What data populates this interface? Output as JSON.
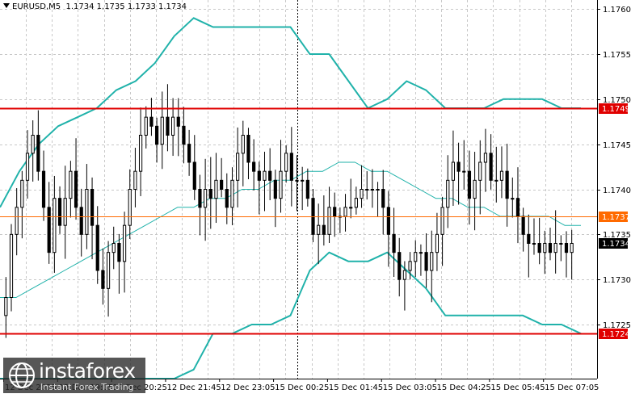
{
  "window": {
    "symbol_label": "EURUSD,M5",
    "ohlc_label": "1.1734 1.1735 1.1733 1.1734"
  },
  "colors": {
    "background": "#ffffff",
    "grid": "#c8c8c8",
    "candles": "#000000",
    "bands": "#20b2aa",
    "level_red": "#e00000",
    "level_orange": "#ff6a00",
    "current_price_bg": "#000000"
  },
  "watermark": {
    "brand": "instaforex",
    "tagline": "Instant Forex Trading",
    "icon": "instaforex-globe-icon"
  },
  "chart_data": {
    "type": "candlestick",
    "symbol": "EURUSD",
    "timeframe": "M5",
    "ylim": [
      1.1719,
      1.1761
    ],
    "y_ticks": [
      "1.1760",
      "1.1755",
      "1.1750",
      "1.1745",
      "1.1740",
      "1.1735",
      "1.1730",
      "1.1725"
    ],
    "x_ticks": [
      "12 Dec 2025",
      "12 Dec 19:05",
      "12 Dec 20:25",
      "12 Dec 21:45",
      "12 Dec 23:05",
      "15 Dec 00:25",
      "15 Dec 01:45",
      "15 Dec 03:05",
      "15 Dec 04:25",
      "15 Dec 05:45",
      "15 Dec 07:05"
    ],
    "levels": [
      {
        "value": 1.1749,
        "label": "1.1749",
        "color": "#e00000"
      },
      {
        "value": 1.1737,
        "label": "1.1737",
        "color": "#ff6a00"
      },
      {
        "value": 1.1724,
        "label": "1.1724",
        "color": "#e00000"
      }
    ],
    "current_price": {
      "value": 1.1734,
      "label": "1.1734"
    },
    "closes": [
      1.1728,
      1.1735,
      1.1738,
      1.1741,
      1.1744,
      1.1746,
      1.1742,
      1.1738,
      1.1733,
      1.1739,
      1.1736,
      1.1739,
      1.1742,
      1.1738,
      1.1735,
      1.174,
      1.1736,
      1.1731,
      1.1729,
      1.1733,
      1.1734,
      1.1732,
      1.1736,
      1.174,
      1.1742,
      1.1746,
      1.1748,
      1.1747,
      1.1745,
      1.1748,
      1.1746,
      1.1748,
      1.1747,
      1.1745,
      1.1743,
      1.174,
      1.1738,
      1.174,
      1.1739,
      1.1741,
      1.174,
      1.1738,
      1.1741,
      1.1744,
      1.1746,
      1.1743,
      1.1742,
      1.1741,
      1.1742,
      1.1741,
      1.1739,
      1.1742,
      1.1744,
      1.1741,
      1.1741,
      1.1741,
      1.1739,
      1.1735,
      1.1736,
      1.1735,
      1.1738,
      1.1737,
      1.1737,
      1.1738,
      1.1738,
      1.1739,
      1.174,
      1.174,
      1.174,
      1.174,
      1.1738,
      1.1735,
      1.1733,
      1.173,
      1.1731,
      1.1732,
      1.1733,
      1.1733,
      1.1731,
      1.1733,
      1.1735,
      1.1738,
      1.1741,
      1.1743,
      1.1742,
      1.1742,
      1.1739,
      1.1741,
      1.1743,
      1.1744,
      1.1741,
      1.1741,
      1.1742,
      1.1739,
      1.1739,
      1.1737,
      1.1735,
      1.1734,
      1.1734,
      1.1733,
      1.1734,
      1.1733,
      1.1734,
      1.1734,
      1.1733,
      1.1734
    ],
    "ma_line": [
      1.1728,
      1.1728,
      1.1729,
      1.173,
      1.1731,
      1.1732,
      1.1733,
      1.1734,
      1.1735,
      1.1736,
      1.1737,
      1.1738,
      1.1738,
      1.1739,
      1.1739,
      1.174,
      1.174,
      1.1741,
      1.1741,
      1.1742,
      1.1742,
      1.1743,
      1.1743,
      1.1742,
      1.1742,
      1.1741,
      1.174,
      1.1739,
      1.1739,
      1.1738,
      1.1738,
      1.1737,
      1.1737,
      1.1737,
      1.1737,
      1.1736,
      1.1736
    ],
    "upper_band": [
      1.1738,
      1.1742,
      1.1745,
      1.1747,
      1.1748,
      1.1749,
      1.1751,
      1.1752,
      1.1754,
      1.1757,
      1.1759,
      1.1758,
      1.1758,
      1.1758,
      1.1758,
      1.1758,
      1.1755,
      1.1755,
      1.1752,
      1.1749,
      1.175,
      1.1752,
      1.1751,
      1.1749,
      1.1749,
      1.1749,
      1.175,
      1.175,
      1.175,
      1.1749,
      1.1749
    ],
    "lower_band": [
      1.1719,
      1.1719,
      1.1719,
      1.1719,
      1.1719,
      1.1719,
      1.1719,
      1.1719,
      1.1719,
      1.1719,
      1.172,
      1.1724,
      1.1724,
      1.1725,
      1.1725,
      1.1726,
      1.1731,
      1.1733,
      1.1732,
      1.1732,
      1.1733,
      1.1731,
      1.1729,
      1.1726,
      1.1726,
      1.1726,
      1.1726,
      1.1726,
      1.1725,
      1.1725,
      1.1724
    ]
  }
}
